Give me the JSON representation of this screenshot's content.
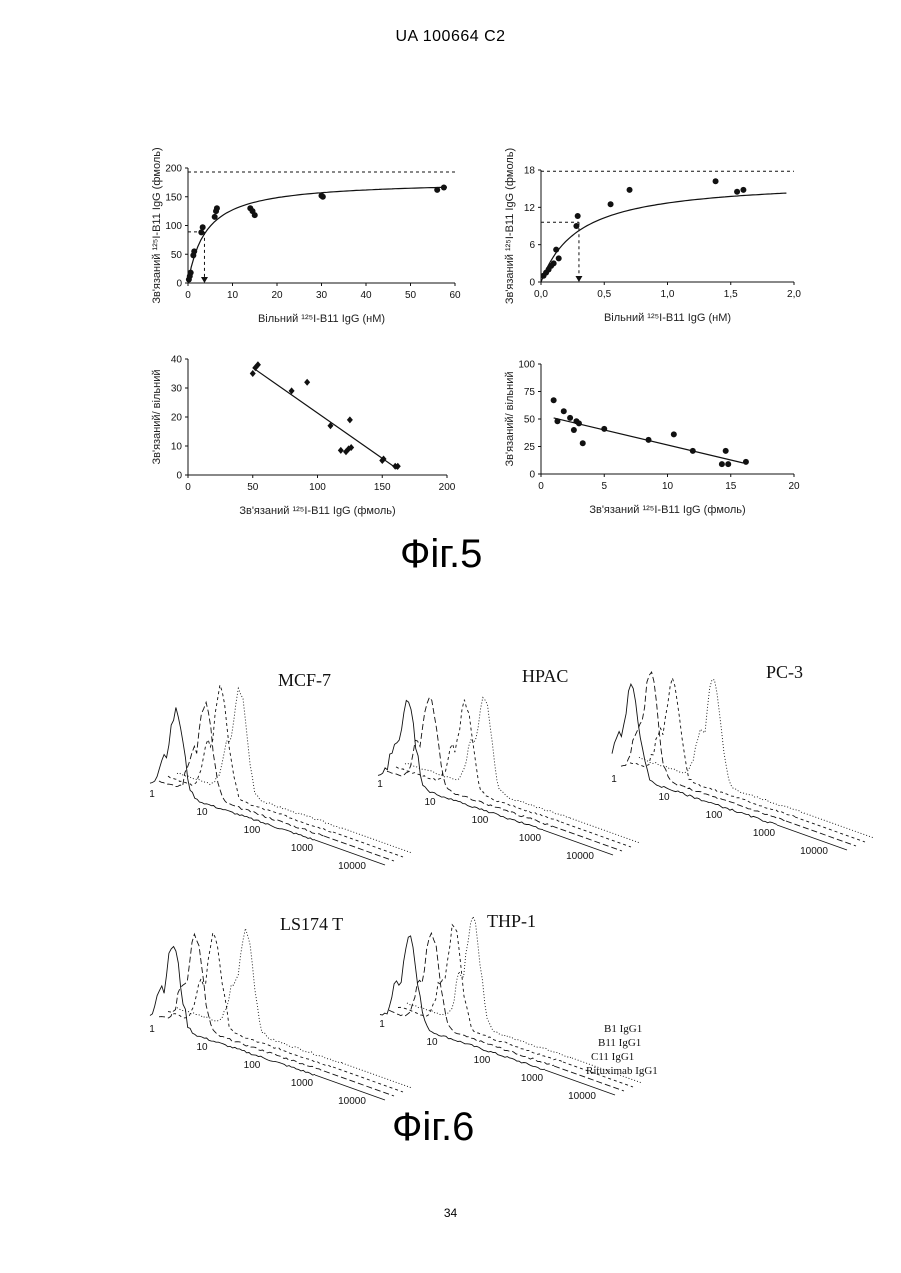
{
  "header": "UA   100664   C2",
  "page_number": "34",
  "figure5": {
    "caption": "Фіг.5",
    "chart_data": [
      {
        "type": "scatter",
        "panel": "top-left",
        "xlabel": "Вільний ¹²⁵I-B11 IgG (нМ)",
        "ylabel": "Зв'язаний ¹²⁵I-B11 IgG (фмоль)",
        "xlim": [
          0,
          60
        ],
        "ylim": [
          0,
          200
        ],
        "xticks": [
          0,
          10,
          20,
          30,
          40,
          50,
          60
        ],
        "yticks": [
          0,
          50,
          100,
          150,
          200
        ],
        "xtick_labels": [
          "0",
          "10",
          "20",
          "30",
          "40",
          "50",
          "60"
        ],
        "ytick_labels": [
          "0",
          "50",
          "100",
          "150",
          "200"
        ],
        "points": [
          [
            0.2,
            6
          ],
          [
            0.4,
            12
          ],
          [
            0.6,
            18
          ],
          [
            1.2,
            48
          ],
          [
            1.4,
            55
          ],
          [
            3,
            88
          ],
          [
            3.3,
            97
          ],
          [
            6,
            115
          ],
          [
            6.3,
            125
          ],
          [
            6.5,
            130
          ],
          [
            14,
            130
          ],
          [
            14.5,
            125
          ],
          [
            15,
            118
          ],
          [
            30,
            152
          ],
          [
            30.3,
            150
          ],
          [
            56,
            162
          ],
          [
            57.5,
            166
          ]
        ],
        "fit_curve": {
          "type": "hyperbolic",
          "bmax": 178,
          "kd": 4
        },
        "plateau_line": 193,
        "half_max": {
          "x": 3.7,
          "y": 89
        }
      },
      {
        "type": "scatter",
        "panel": "top-right",
        "xlabel": "Вільний ¹²⁵I-B11 IgG (нМ)",
        "ylabel": "Зв'язаний ¹²⁵I-B11 IgG (фмоль)",
        "xlim": [
          0,
          2.0
        ],
        "ylim": [
          0,
          18
        ],
        "xticks": [
          0,
          0.5,
          1.0,
          1.5,
          2.0
        ],
        "yticks": [
          0,
          6,
          12,
          18
        ],
        "xtick_labels": [
          "0,0",
          "0,5",
          "1,0",
          "1,5",
          "2,0"
        ],
        "ytick_labels": [
          "0",
          "6",
          "12",
          "18"
        ],
        "points": [
          [
            0.02,
            1
          ],
          [
            0.04,
            1.5
          ],
          [
            0.06,
            2
          ],
          [
            0.08,
            2.6
          ],
          [
            0.1,
            3
          ],
          [
            0.14,
            3.8
          ],
          [
            0.12,
            5.2
          ],
          [
            0.28,
            9
          ],
          [
            0.29,
            10.6
          ],
          [
            0.55,
            12.5
          ],
          [
            0.7,
            14.8
          ],
          [
            1.38,
            16.2
          ],
          [
            1.55,
            14.5
          ],
          [
            1.6,
            14.8
          ]
        ],
        "fit_curve": {
          "type": "hyperbolic",
          "bmax": 16.5,
          "kd": 0.3
        },
        "plateau_line": 17.8,
        "half_max": {
          "x": 0.3,
          "y": 9.6
        }
      },
      {
        "type": "scatter",
        "panel": "bottom-left",
        "xlabel": "Зв'язаний ¹²⁵I-B11 IgG (фмоль)",
        "ylabel": "Зв'язаний/ вільний",
        "xlim": [
          0,
          200
        ],
        "ylim": [
          0,
          40
        ],
        "xticks": [
          0,
          50,
          100,
          150,
          200
        ],
        "yticks": [
          0,
          10,
          20,
          30,
          40
        ],
        "xtick_labels": [
          "0",
          "50",
          "100",
          "150",
          "200"
        ],
        "ytick_labels": [
          "0",
          "10",
          "20",
          "30",
          "40"
        ],
        "points": [
          [
            50,
            35
          ],
          [
            52,
            37
          ],
          [
            54,
            38
          ],
          [
            80,
            29
          ],
          [
            92,
            32
          ],
          [
            110,
            17
          ],
          [
            118,
            8.5
          ],
          [
            122,
            8
          ],
          [
            124,
            9
          ],
          [
            125,
            19
          ],
          [
            126,
            9.5
          ],
          [
            150,
            5
          ],
          [
            151,
            5.5
          ],
          [
            160,
            3
          ],
          [
            162,
            3
          ]
        ],
        "fit_line": [
          [
            50,
            37
          ],
          [
            162,
            2
          ]
        ]
      },
      {
        "type": "scatter",
        "panel": "bottom-right",
        "xlabel": "Зв'язаний ¹²⁵I-B11 IgG (фмоль)",
        "ylabel": "Зв'язаний/ вільний",
        "xlim": [
          0,
          20
        ],
        "ylim": [
          0,
          100
        ],
        "xticks": [
          0,
          5,
          10,
          15,
          20
        ],
        "yticks": [
          0,
          25,
          50,
          75,
          100
        ],
        "xtick_labels": [
          "0",
          "5",
          "10",
          "15",
          "20"
        ],
        "ytick_labels": [
          "0",
          "25",
          "50",
          "75",
          "100"
        ],
        "points": [
          [
            1,
            67
          ],
          [
            1.3,
            48
          ],
          [
            1.8,
            57
          ],
          [
            2.3,
            51
          ],
          [
            2.6,
            40
          ],
          [
            2.8,
            48
          ],
          [
            3,
            46
          ],
          [
            3.3,
            28
          ],
          [
            5,
            41
          ],
          [
            8.5,
            31
          ],
          [
            10.5,
            36
          ],
          [
            12,
            21
          ],
          [
            14.3,
            9
          ],
          [
            14.6,
            21
          ],
          [
            14.8,
            9
          ],
          [
            16.2,
            11
          ]
        ],
        "fit_line": [
          [
            1,
            51
          ],
          [
            16,
            10
          ]
        ]
      }
    ]
  },
  "figure6": {
    "caption": "Фіг.6",
    "x_ticks": [
      "1",
      "10",
      "100",
      "1000",
      "10000"
    ],
    "legend": [
      "B1 IgG1",
      "B11 IgG1",
      "C11 IgG1",
      "Rituximab IgG1"
    ],
    "panels": [
      {
        "label": "MCF-7"
      },
      {
        "label": "HPAC"
      },
      {
        "label": "PC-3"
      },
      {
        "label": "LS174 T"
      },
      {
        "label": "THP-1"
      }
    ]
  },
  "colors": {
    "ink": "#111111",
    "background": "#ffffff"
  }
}
